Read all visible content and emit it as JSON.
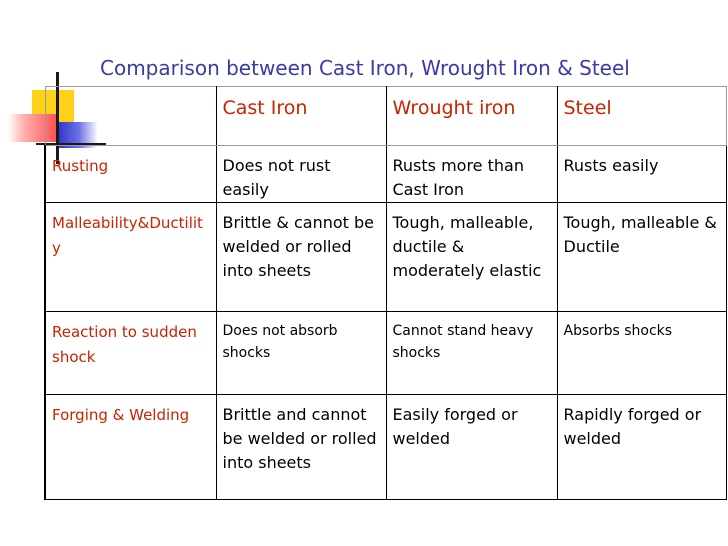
{
  "slide": {
    "title": "Comparison between Cast Iron, Wrought Iron & Steel"
  },
  "table": {
    "headers": [
      "",
      "Cast Iron",
      "Wrought iron",
      "Steel"
    ],
    "rows": [
      {
        "property": "Rusting",
        "cast_iron": "Does not rust easily",
        "wrought_iron": "Rusts more than Cast Iron",
        "steel": "Rusts easily"
      },
      {
        "property": "Malleability&Ductility",
        "cast_iron": "Brittle & cannot be welded or rolled into sheets",
        "wrought_iron": "Tough, malleable, ductile & moderately elastic",
        "steel": "Tough, malleable & Ductile"
      },
      {
        "property": "Reaction to sudden shock",
        "cast_iron": "Does not absorb shocks",
        "wrought_iron": "Cannot stand heavy shocks",
        "steel": "Absorbs shocks"
      },
      {
        "property": "Forging & Welding",
        "cast_iron": "Brittle and cannot be welded or rolled into sheets",
        "wrought_iron": "Easily forged or welded",
        "steel": "Rapidly forged or welded"
      }
    ]
  },
  "colors": {
    "title": "#3a3aa8",
    "header_text": "#cc2200",
    "row_label_text": "#cc2200",
    "body_text": "#000000",
    "deco_yellow": "#ffd21a",
    "deco_red": "#ff4d4d",
    "deco_blue": "#2b2fc4"
  }
}
